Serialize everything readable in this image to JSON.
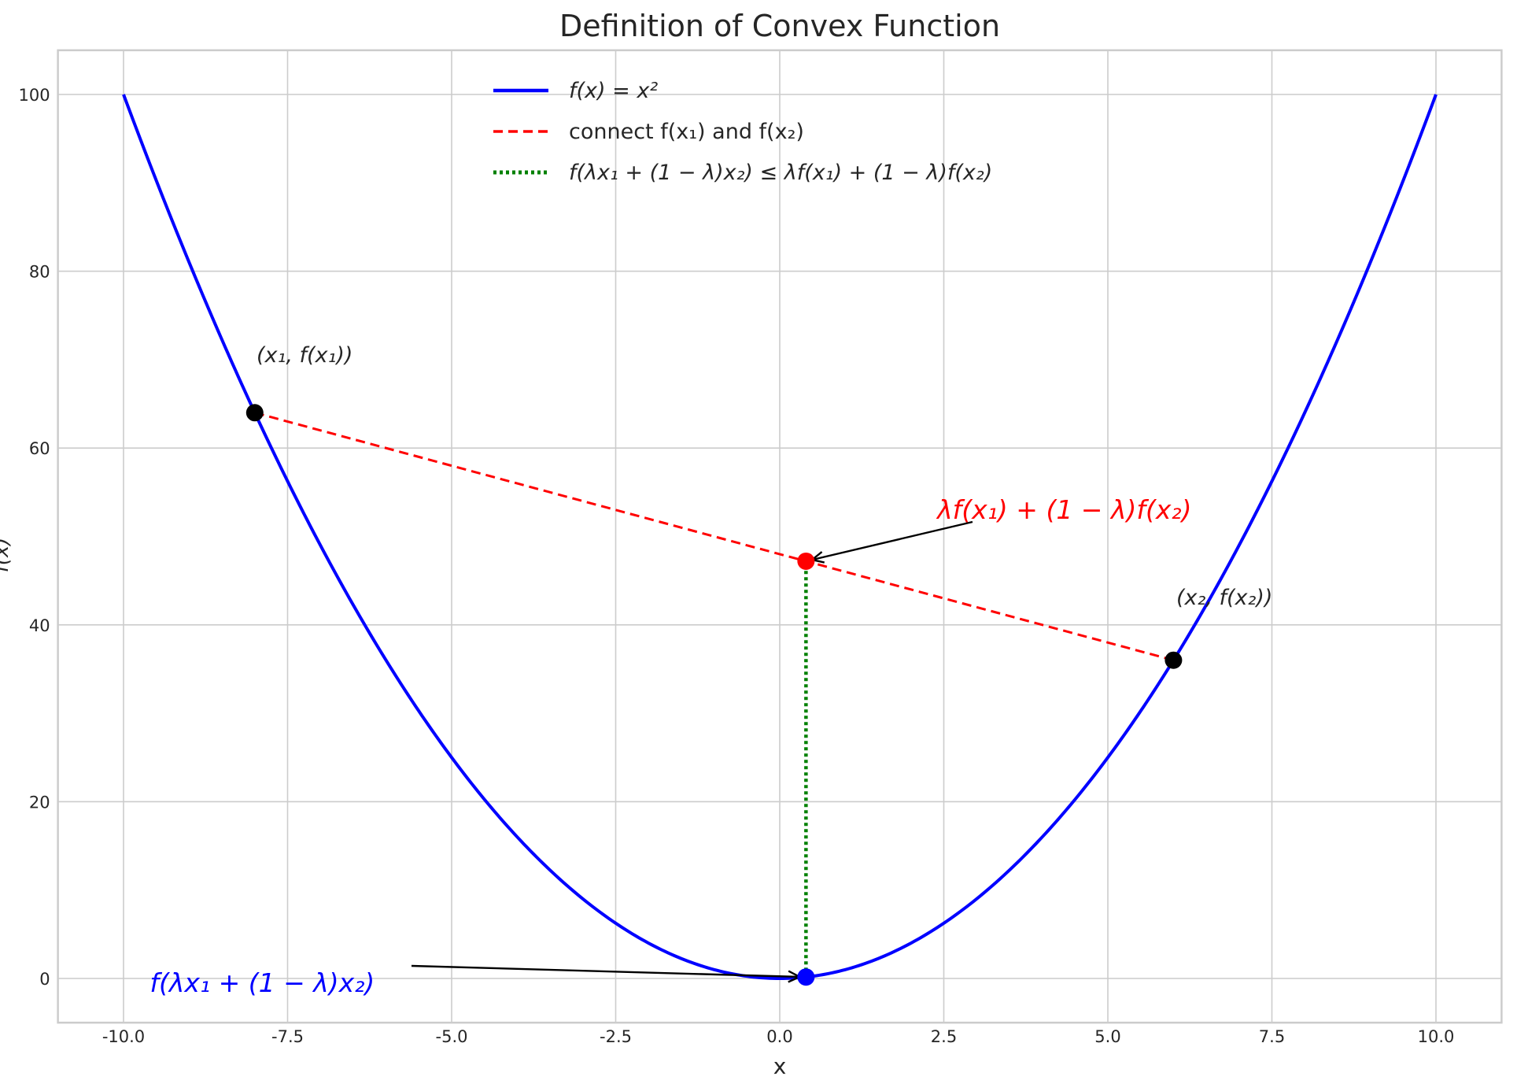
{
  "chart_data": {
    "type": "line",
    "title": "Definition of Convex Function",
    "xlabel": "x",
    "ylabel": "f(x)",
    "xlim": [
      -11,
      11
    ],
    "ylim": [
      -5,
      105
    ],
    "xticks": [
      "-10.0",
      "-7.5",
      "-5.0",
      "-2.5",
      "0.0",
      "2.5",
      "5.0",
      "7.5",
      "10.0"
    ],
    "xtick_values": [
      -10,
      -7.5,
      -5,
      -2.5,
      0,
      2.5,
      5,
      7.5,
      10
    ],
    "yticks": [
      "0",
      "20",
      "40",
      "60",
      "80",
      "100"
    ],
    "ytick_values": [
      0,
      20,
      40,
      60,
      80,
      100
    ],
    "grid": true,
    "legend_position": "top-center",
    "series": [
      {
        "name": "f(x) = x²",
        "kind": "function",
        "expr": "x^2",
        "x_range": [
          -10,
          10
        ],
        "color": "#0000ff",
        "style": "solid"
      },
      {
        "name": "connect f(x₁) and f(x₂)",
        "x": [
          -8,
          6
        ],
        "y": [
          64,
          36
        ],
        "color": "#ff0000",
        "style": "dashed"
      },
      {
        "name": "f(λx₁ + (1 − λ)x₂) ≤ λf(x₁) + (1 − λ)f(x₂)",
        "x": [
          0.4,
          0.4
        ],
        "y": [
          0.16,
          47.2
        ],
        "color": "#008000",
        "style": "dotted"
      }
    ],
    "points": [
      {
        "x": -8,
        "y": 64,
        "color": "#000000",
        "label": "(x₁, f(x₁))"
      },
      {
        "x": 6,
        "y": 36,
        "color": "#000000",
        "label": "(x₂, f(x₂))"
      },
      {
        "x": 0.4,
        "y": 47.2,
        "color": "#ff0000"
      },
      {
        "x": 0.4,
        "y": 0.16,
        "color": "#0000ff"
      }
    ],
    "annotations": [
      {
        "text": "λf(x₁) + (1 − λ)f(x₂)",
        "color": "#ff0000",
        "target": [
          0.4,
          47.2
        ],
        "text_at": [
          2.4,
          52
        ]
      },
      {
        "text": "f(λx₁ + (1 − λ)x₂)",
        "color": "#0000ff",
        "target": [
          0.4,
          0.16
        ],
        "text_at": [
          -9.6,
          -1.5
        ]
      }
    ]
  }
}
